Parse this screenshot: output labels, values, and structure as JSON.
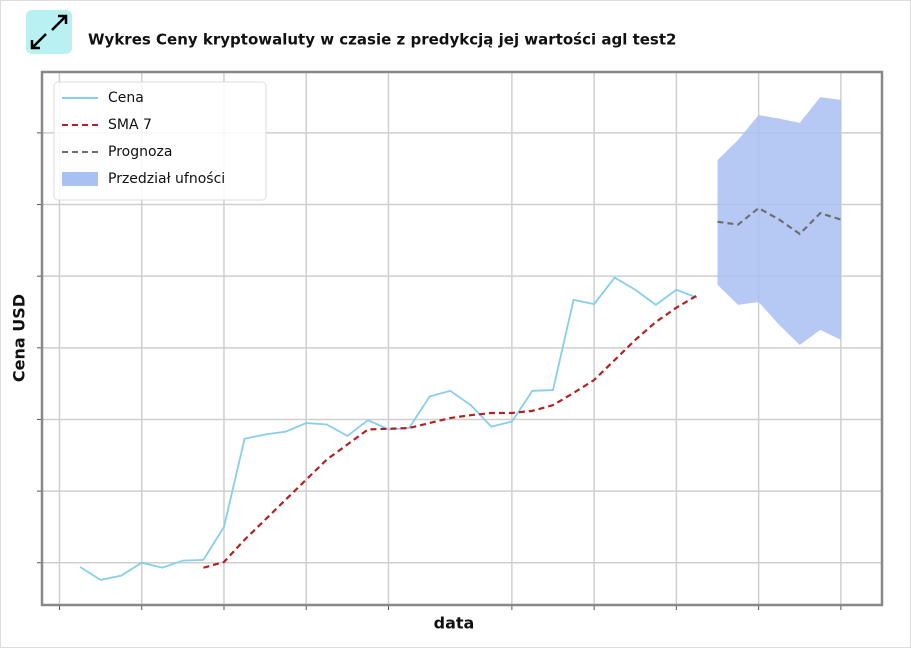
{
  "chart_data": {
    "type": "line",
    "title": "Wykres Ceny kryptowaluty w czasie z predykcją jej wartości agl test2",
    "x_label": "data",
    "y_label": "Cena USD",
    "x": [
      0,
      1,
      2,
      3,
      4,
      5,
      6,
      7,
      8,
      9,
      10,
      11,
      12,
      13,
      14,
      15,
      16,
      17,
      18,
      19,
      20,
      21,
      22,
      23,
      24,
      25,
      26,
      27,
      28,
      29,
      30,
      31,
      32,
      33,
      34,
      35,
      36,
      37
    ],
    "series": [
      {
        "name": "Cena",
        "color": "#87ceeb",
        "dash": false,
        "values": [
          0.94,
          0.76,
          0.82,
          1.0,
          0.93,
          1.03,
          1.04,
          1.5,
          2.73,
          2.79,
          2.83,
          2.95,
          2.93,
          2.77,
          2.99,
          2.86,
          2.88,
          3.32,
          3.4,
          3.2,
          2.9,
          2.97,
          3.4,
          3.41,
          4.67,
          4.61,
          4.98,
          4.81,
          4.6,
          4.81,
          4.7,
          null,
          null,
          null,
          null,
          null,
          null,
          null
        ]
      },
      {
        "name": "SMA 7",
        "color": "#b22222",
        "dash": true,
        "values": [
          null,
          null,
          null,
          null,
          null,
          null,
          0.93,
          1.01,
          1.32,
          1.6,
          1.88,
          2.16,
          2.44,
          2.65,
          2.86,
          2.87,
          2.88,
          2.95,
          3.02,
          3.06,
          3.09,
          3.09,
          3.12,
          3.2,
          3.37,
          3.55,
          3.83,
          4.11,
          4.36,
          4.56,
          4.73,
          null,
          null,
          null,
          null,
          null,
          null,
          null
        ]
      },
      {
        "name": "Prognoza",
        "color": "#6e6e6e",
        "dash": true,
        "values": [
          null,
          null,
          null,
          null,
          null,
          null,
          null,
          null,
          null,
          null,
          null,
          null,
          null,
          null,
          null,
          null,
          null,
          null,
          null,
          null,
          null,
          null,
          null,
          null,
          null,
          null,
          null,
          null,
          null,
          null,
          null,
          5.76,
          5.72,
          5.95,
          5.79,
          5.59,
          5.88,
          5.79
        ]
      }
    ],
    "interval": {
      "name": "Przedział ufności",
      "color": "#a8c0f2",
      "upper": [
        null,
        null,
        null,
        null,
        null,
        null,
        null,
        null,
        null,
        null,
        null,
        null,
        null,
        null,
        null,
        null,
        null,
        null,
        null,
        null,
        null,
        null,
        null,
        null,
        null,
        null,
        null,
        null,
        null,
        null,
        null,
        6.62,
        6.9,
        7.25,
        7.2,
        7.14,
        7.5,
        7.46
      ],
      "lower": [
        null,
        null,
        null,
        null,
        null,
        null,
        null,
        null,
        null,
        null,
        null,
        null,
        null,
        null,
        null,
        null,
        null,
        null,
        null,
        null,
        null,
        null,
        null,
        null,
        null,
        null,
        null,
        null,
        null,
        null,
        null,
        4.88,
        4.6,
        4.64,
        4.32,
        4.04,
        4.25,
        4.11
      ]
    },
    "xlim": [
      -1.85,
      39.0
    ],
    "ylim": [
      0.41,
      7.85
    ],
    "xticks": [
      -1,
      3,
      7,
      11,
      15,
      21,
      25,
      29,
      33,
      37
    ],
    "yticks": [
      1,
      2,
      3,
      4,
      5,
      6,
      7
    ],
    "grid": true,
    "legend": "upper left"
  }
}
